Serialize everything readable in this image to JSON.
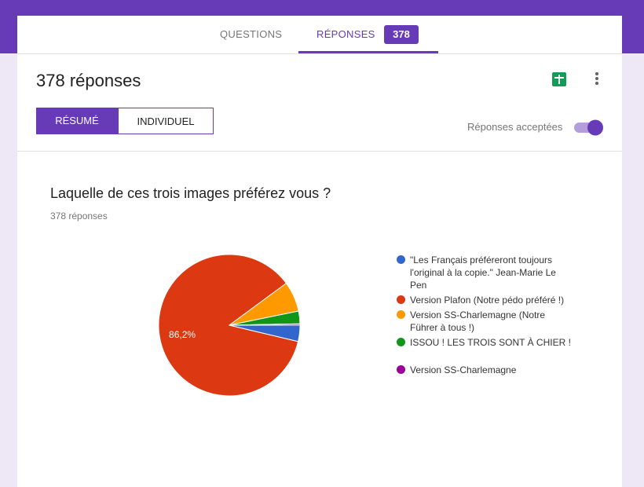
{
  "tabs": [
    "QUESTIONS",
    "RÉPONSES"
  ],
  "tab_badge": "378",
  "header": {
    "title": "378 réponses",
    "buttons": [
      "RÉSUMÉ",
      "INDIVIDUEL"
    ],
    "toggle_label": "Réponses acceptées"
  },
  "chart_data": {
    "type": "pie",
    "title": "Laquelle de ces trois images préférez vous ?",
    "subtitle": "378 réponses",
    "categories": [
      "\"Les Français préféreront toujours l'original à la copie.\" Jean-Marie Le Pen",
      "Version Plafon (Notre pédo préféré !)",
      "Version SS-Charlemagne (Notre Führer à tous !)",
      "ISSOU ! LES TROIS SONT À CHIER !",
      "Version SS-Charlemagne"
    ],
    "values": [
      3.7,
      86.2,
      6.9,
      2.9,
      0.3
    ],
    "value_labels": [
      null,
      "86,2%",
      null,
      null,
      null
    ],
    "colors": [
      "#3366cc",
      "#dc3912",
      "#ff9900",
      "#109618",
      "#990099"
    ]
  }
}
